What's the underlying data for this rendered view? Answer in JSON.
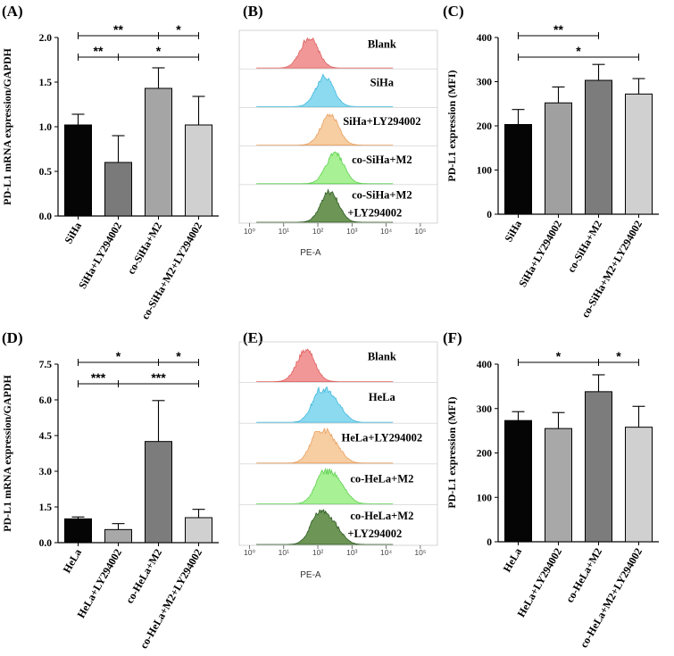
{
  "chart_data": [
    {
      "id": "A",
      "panel_label": "(A)",
      "type": "bar",
      "ylabel": "PD-L1 mRNA expression/GAPDH",
      "ylim": [
        0,
        2.0
      ],
      "yticks": [
        "0.0",
        "0.5",
        "1.0",
        "1.5",
        "2.0"
      ],
      "tick_values": [
        0,
        0.5,
        1.0,
        1.5,
        2.0
      ],
      "categories": [
        "SiHa",
        "SiHa+LY294002",
        "co-SiHa+M2",
        "co-SiHa+M2+LY294002"
      ],
      "values": [
        1.02,
        0.6,
        1.43,
        1.02
      ],
      "errors": [
        0.12,
        0.3,
        0.23,
        0.32
      ],
      "colors": [
        "#050505",
        "#7a7a7a",
        "#a5a5a5",
        "#d0d0d0"
      ],
      "significance": [
        {
          "from": 0,
          "to": 2,
          "label": "**",
          "level": 1,
          "tick_at": 2
        },
        {
          "from": 2,
          "to": 3,
          "label": "*",
          "level": 1
        },
        {
          "from": 0,
          "to": 1,
          "label": "**",
          "level": 2
        },
        {
          "from": 1,
          "to": 3,
          "label": "*",
          "level": 2
        }
      ]
    },
    {
      "id": "C",
      "panel_label": "(C)",
      "type": "bar",
      "ylabel": "PD-L1 expression (MFI)",
      "ylim": [
        0,
        400
      ],
      "yticks": [
        "0",
        "100",
        "200",
        "300",
        "400"
      ],
      "tick_values": [
        0,
        100,
        200,
        300,
        400
      ],
      "categories": [
        "SiHa",
        "SiHa+LY294002",
        "co-SiHa+M2",
        "co-SiHa+M2+LY294002"
      ],
      "values": [
        203,
        252,
        303,
        272
      ],
      "errors": [
        34,
        36,
        36,
        35
      ],
      "colors": [
        "#050505",
        "#a0a0a0",
        "#7c7c7c",
        "#d0d0d0"
      ],
      "significance": [
        {
          "from": 0,
          "to": 2,
          "label": "**",
          "level": 1
        },
        {
          "from": 0,
          "to": 3,
          "label": "*",
          "level": 2
        }
      ]
    },
    {
      "id": "D",
      "panel_label": "(D)",
      "type": "bar",
      "ylabel": "PD-L1 mRNA expression/GAPDH",
      "ylim": [
        0,
        7.5
      ],
      "yticks": [
        "0.0",
        "1.5",
        "3.0",
        "4.5",
        "6.0",
        "7.5"
      ],
      "tick_values": [
        0,
        1.5,
        3.0,
        4.5,
        6.0,
        7.5
      ],
      "categories": [
        "HeLa",
        "HeLa+LY294002",
        "co-HeLa+M2",
        "co-HeLa+M2+LY294002"
      ],
      "values": [
        1.0,
        0.55,
        4.25,
        1.05
      ],
      "errors": [
        0.08,
        0.25,
        1.72,
        0.35
      ],
      "colors": [
        "#050505",
        "#a8a8a8",
        "#7c7c7c",
        "#d0d0d0"
      ],
      "significance": [
        {
          "from": 0,
          "to": 2,
          "label": "*",
          "level": 1
        },
        {
          "from": 2,
          "to": 3,
          "label": "*",
          "level": 1
        },
        {
          "from": 0,
          "to": 1,
          "label": "***",
          "level": 2
        },
        {
          "from": 1,
          "to": 3,
          "label": "***",
          "level": 2
        }
      ]
    },
    {
      "id": "F",
      "panel_label": "(F)",
      "type": "bar",
      "ylabel": "PD-L1 expression (MFI)",
      "ylim": [
        0,
        400
      ],
      "yticks": [
        "0",
        "100",
        "200",
        "300",
        "400"
      ],
      "tick_values": [
        0,
        100,
        200,
        300,
        400
      ],
      "categories": [
        "HeLa",
        "HeLa+LY294002",
        "co-HeLa+M2",
        "co-HeLa+M2+LY294002"
      ],
      "values": [
        273,
        255,
        338,
        258
      ],
      "errors": [
        20,
        36,
        38,
        47
      ],
      "colors": [
        "#050505",
        "#a8a8a8",
        "#7c7c7c",
        "#d0d0d0"
      ],
      "significance": [
        {
          "from": 0,
          "to": 2,
          "label": "*",
          "level": 1
        },
        {
          "from": 2,
          "to": 3,
          "label": "*",
          "level": 1
        }
      ]
    },
    {
      "id": "B",
      "panel_label": "(B)",
      "type": "flow-histogram",
      "xlabel": "PE-A",
      "xticks": [
        "10⁰",
        "10¹",
        "10²",
        "10³",
        "10⁴",
        "10⁵"
      ],
      "samples": [
        {
          "name": "Blank",
          "color": "#f08c8c",
          "edge": "#e06060",
          "peak_log10": 1.75
        },
        {
          "name": "SiHa",
          "color": "#7fd6ee",
          "edge": "#3fb8dc",
          "peak_log10": 2.2
        },
        {
          "name": "SiHa+LY294002",
          "color": "#f6c898",
          "edge": "#e8a060",
          "peak_log10": 2.35
        },
        {
          "name": "co-SiHa+M2",
          "color": "#9ef088",
          "edge": "#5cd050",
          "peak_log10": 2.5
        },
        {
          "name": "co-SiHa+M2\n+LY294002",
          "color": "#5c8a44",
          "edge": "#2e5a22",
          "peak_log10": 2.35
        }
      ]
    },
    {
      "id": "E",
      "panel_label": "(E)",
      "type": "flow-histogram",
      "xlabel": "PE-A",
      "xticks": [
        "10⁰",
        "10¹",
        "10²",
        "10³",
        "10⁴",
        "10⁵"
      ],
      "samples": [
        {
          "name": "Blank",
          "color": "#f08c8c",
          "edge": "#e06060",
          "peak_log10": 1.65
        },
        {
          "name": "HeLa",
          "color": "#7fd6ee",
          "edge": "#3fb8dc",
          "peak_log10": 2.1
        },
        {
          "name": "HeLa+LY294002",
          "color": "#f6c898",
          "edge": "#e8a060",
          "peak_log10": 2.05
        },
        {
          "name": "co-HeLa+M2",
          "color": "#9ef088",
          "edge": "#5cd050",
          "peak_log10": 2.2
        },
        {
          "name": "co-HeLa+M2\n+LY294002",
          "color": "#5c8a44",
          "edge": "#2e5a22",
          "peak_log10": 2.05
        }
      ]
    }
  ]
}
